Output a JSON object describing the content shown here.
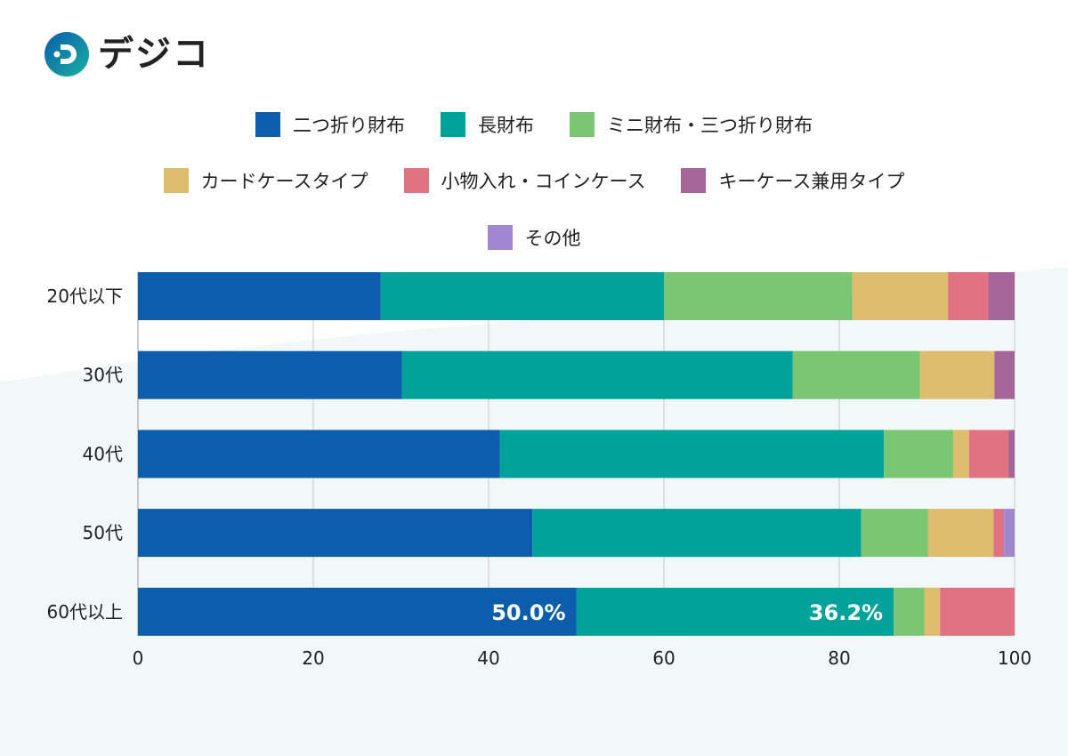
{
  "logo": {
    "text": "デジコ"
  },
  "chart_data": {
    "type": "bar",
    "orientation": "horizontal",
    "stacked": true,
    "categories": [
      "20代以下",
      "30代",
      "40代",
      "50代",
      "60代以上"
    ],
    "xlim": [
      0,
      100
    ],
    "xticks": [
      0,
      20,
      40,
      60,
      80,
      100
    ],
    "grid": "vertical",
    "legend_position": "top",
    "series": [
      {
        "name": "二つ折り財布",
        "color": "#0c5dab",
        "values": [
          27.7,
          30.1,
          41.3,
          45.0,
          50.0
        ]
      },
      {
        "name": "長財布",
        "color": "#00a29a",
        "values": [
          32.3,
          44.6,
          43.8,
          37.5,
          36.2
        ]
      },
      {
        "name": "ミニ財布・三つ折り財布",
        "color": "#7bc673",
        "values": [
          21.5,
          14.5,
          7.9,
          7.6,
          3.5
        ]
      },
      {
        "name": "カードケースタイプ",
        "color": "#dcbd6e",
        "values": [
          10.9,
          8.5,
          1.8,
          7.5,
          1.8
        ]
      },
      {
        "name": "小物入れ・コインケース",
        "color": "#e07282",
        "values": [
          4.6,
          0.0,
          4.5,
          1.2,
          8.5
        ]
      },
      {
        "name": "キーケース兼用タイプ",
        "color": "#a46698",
        "values": [
          3.0,
          2.3,
          0.7,
          0.0,
          0.0
        ]
      },
      {
        "name": "その他",
        "color": "#a088d0",
        "values": [
          0.0,
          0.0,
          0.0,
          1.2,
          0.0
        ]
      }
    ],
    "data_labels": [
      {
        "category": "60代以上",
        "series": "二つ折り財布",
        "text": "50.0%"
      },
      {
        "category": "60代以上",
        "series": "長財布",
        "text": "36.2%"
      }
    ]
  }
}
